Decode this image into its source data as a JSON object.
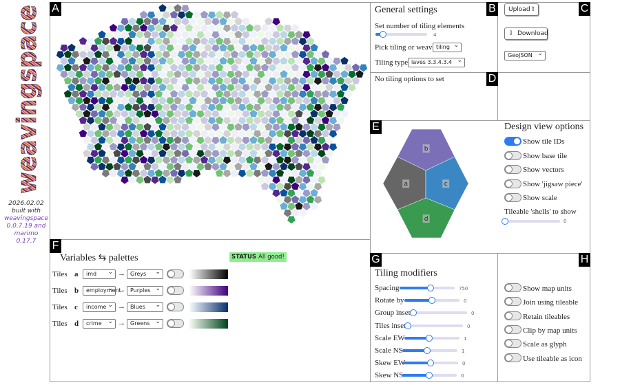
{
  "sidebar": {
    "logo": "weavingspace",
    "lines": [
      "2026.02.02",
      "built with",
      "weavingspace",
      "0.0.7.19 and",
      "marimo",
      "0.17.7"
    ]
  },
  "panels": [
    "A",
    "B",
    "C",
    "D",
    "E",
    "F",
    "G",
    "H"
  ],
  "general_settings": {
    "title": "General settings",
    "tiling_elements": {
      "label": "Set number of tiling elements",
      "value": 4
    },
    "tiling_or_weave": {
      "label": "Pick tiling or weave",
      "value": "tiling"
    },
    "tiling_type": {
      "label": "Tiling type",
      "value": "laves 3.3.4.3.4"
    }
  },
  "io": {
    "upload": "Upload",
    "download": "Download",
    "format": "GeoJSON"
  },
  "tiling_options": "No tiling options to set",
  "design_view": {
    "tile_ids": [
      "a",
      "b",
      "c",
      "d"
    ],
    "tile_colors": [
      "#666666",
      "#7b6fb8",
      "#3a87c4",
      "#3a9a50"
    ],
    "title": "Design view options",
    "toggles": [
      {
        "label": "Show tile IDs",
        "on": true
      },
      {
        "label": "Show base tile",
        "on": false
      },
      {
        "label": "Show vectors",
        "on": false
      },
      {
        "label": "Show 'jigsaw piece'",
        "on": false
      },
      {
        "label": "Show scale",
        "on": false
      }
    ],
    "shells": {
      "label": "Tileable 'shells' to show",
      "value": 0
    }
  },
  "variables": {
    "title": "Variables ⇆ palettes",
    "status_label": "STATUS",
    "status": "All good!",
    "arrow": "→",
    "rows": [
      {
        "tile": "Tiles",
        "id": "a",
        "variable": "imd",
        "palette": "Greys",
        "colors": [
          "#ffffff",
          "#000000"
        ]
      },
      {
        "tile": "Tiles",
        "id": "b",
        "variable": "employment",
        "palette": "Purples",
        "colors": [
          "#fcfbfd",
          "#3f007d"
        ]
      },
      {
        "tile": "Tiles",
        "id": "c",
        "variable": "income",
        "palette": "Blues",
        "colors": [
          "#f7fbff",
          "#08306b"
        ]
      },
      {
        "tile": "Tiles",
        "id": "d",
        "variable": "crime",
        "palette": "Greens",
        "colors": [
          "#f7fcf5",
          "#00441b"
        ]
      }
    ]
  },
  "tiling_modifiers": {
    "title": "Tiling modifiers",
    "sliders": [
      {
        "label": "Spacing",
        "value": 750
      },
      {
        "label": "Rotate by",
        "value": 0
      },
      {
        "label": "Group inset",
        "value": 0
      },
      {
        "label": "Tiles inset",
        "value": 0
      },
      {
        "label": "Scale EW",
        "value": 1
      },
      {
        "label": "Scale NS",
        "value": 1
      },
      {
        "label": "Skew EW",
        "value": 0
      },
      {
        "label": "Skew NS",
        "value": 0
      }
    ]
  },
  "map_options": {
    "toggles": [
      {
        "label": "Show map units",
        "on": false
      },
      {
        "label": "Join using tileable",
        "on": false
      },
      {
        "label": "Retain tileables",
        "on": false
      },
      {
        "label": "Clip by map units",
        "on": false
      },
      {
        "label": "Scale as glyph",
        "on": false
      },
      {
        "label": "Use tileable as icon",
        "on": false
      }
    ]
  }
}
